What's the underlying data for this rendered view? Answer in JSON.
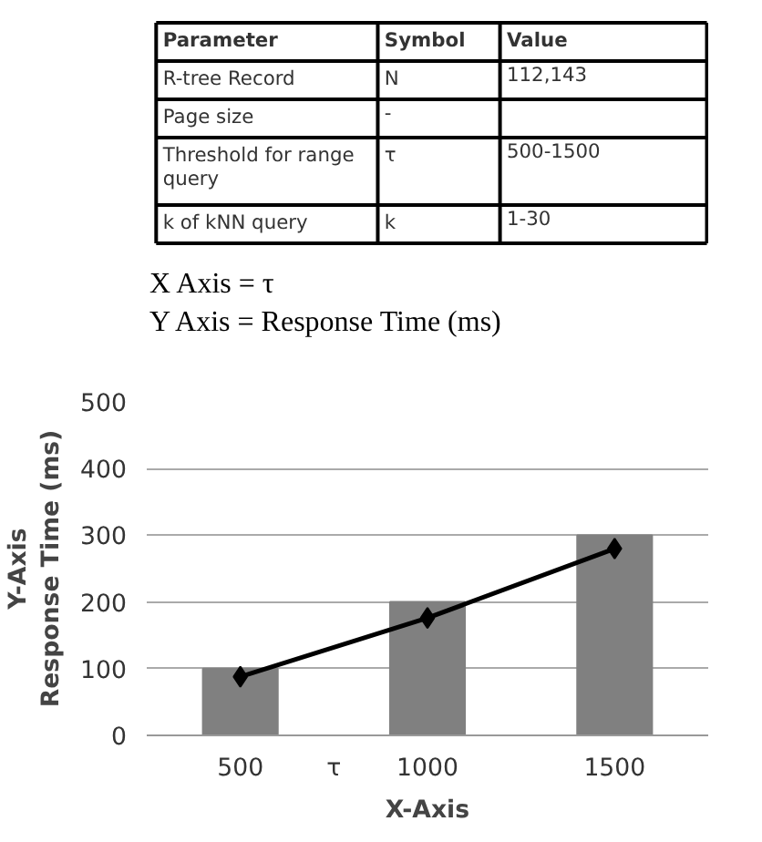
{
  "chart_data": [
    {
      "type": "other",
      "categories": [
        "Parameter",
        "Symbol",
        "Value"
      ],
      "cell_labels": [
        [
          "R-tree Record",
          "N",
          "112,143"
        ],
        [
          "Page size",
          "-",
          null
        ],
        [
          "Threshold for range\nquery",
          "τ",
          "500-1500"
        ],
        [
          "k of kNN query",
          "k",
          "1-30"
        ]
      ],
      "annotations": [
        "X Axis = τ",
        "Y Axis = Response Time (ms)"
      ]
    },
    {
      "type": "bar",
      "categories": [
        "500",
        "1000",
        "1500"
      ],
      "xlabel": "X-Axis",
      "ylabel": "Y-Axis\nResponse Time (ms)",
      "annotations": [
        "τ"
      ],
      "ylim": [
        0,
        500
      ],
      "yticks": [
        0,
        100,
        200,
        300,
        400,
        500
      ],
      "grid": "y",
      "series": [
        {
          "type": "bar",
          "color": "#808080",
          "values": [
            100,
            200,
            300
          ]
        },
        {
          "type": "line",
          "color": "#000000",
          "values": [
            88,
            176,
            280
          ],
          "marker": "diamond",
          "line_style": "solid"
        }
      ]
    }
  ]
}
